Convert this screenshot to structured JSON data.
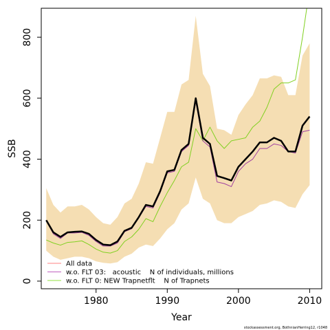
{
  "chart_data": {
    "type": "line",
    "xlabel": "Year",
    "ylabel": "SSB",
    "xlim": [
      1972.3,
      2011.7
    ],
    "ylim": [
      -25,
      895
    ],
    "x_ticks": [
      1980,
      1990,
      2000,
      2010
    ],
    "y_ticks": [
      0,
      200,
      400,
      600,
      800
    ],
    "x": [
      1973,
      1974,
      1975,
      1976,
      1977,
      1978,
      1979,
      1980,
      1981,
      1982,
      1983,
      1984,
      1985,
      1986,
      1987,
      1988,
      1989,
      1990,
      1991,
      1992,
      1993,
      1994,
      1995,
      1996,
      1997,
      1998,
      1999,
      2000,
      2001,
      2002,
      2003,
      2004,
      2005,
      2006,
      2007,
      2008,
      2009,
      2010
    ],
    "band": {
      "upper": [
        305,
        250,
        225,
        245,
        245,
        250,
        235,
        210,
        190,
        185,
        210,
        255,
        270,
        320,
        390,
        385,
        470,
        555,
        555,
        645,
        660,
        870,
        680,
        640,
        500,
        495,
        480,
        545,
        580,
        610,
        665,
        665,
        675,
        670,
        610,
        610,
        740,
        780
      ],
      "lower": [
        100,
        80,
        70,
        75,
        80,
        80,
        75,
        65,
        60,
        58,
        62,
        80,
        90,
        110,
        120,
        115,
        140,
        170,
        190,
        235,
        255,
        340,
        270,
        255,
        200,
        190,
        190,
        210,
        220,
        230,
        250,
        255,
        265,
        260,
        245,
        240,
        285,
        315
      ],
      "color": "#f5deb3"
    },
    "series": [
      {
        "name": "All data",
        "color": "#000000",
        "values": [
          200,
          160,
          145,
          160,
          162,
          163,
          155,
          135,
          120,
          118,
          130,
          165,
          175,
          210,
          250,
          245,
          295,
          360,
          365,
          430,
          450,
          600,
          470,
          450,
          345,
          338,
          330,
          375,
          400,
          425,
          455,
          455,
          470,
          460,
          425,
          425,
          510,
          540
        ]
      },
      {
        "name": "w.o. FLT 03:   acoustic    N of individuals, millions",
        "color": "#a040a0",
        "values": [
          198,
          155,
          140,
          158,
          158,
          160,
          150,
          130,
          115,
          115,
          125,
          162,
          172,
          208,
          245,
          240,
          290,
          355,
          360,
          425,
          445,
          590,
          460,
          440,
          325,
          320,
          310,
          360,
          385,
          400,
          435,
          435,
          450,
          445,
          425,
          420,
          490,
          495
        ]
      },
      {
        "name": "w.o. FLT 0: NEW Trapnetflt    N of Trapnets",
        "color": "#80d020",
        "values": [
          135,
          125,
          118,
          127,
          129,
          132,
          120,
          105,
          95,
          92,
          100,
          130,
          145,
          170,
          205,
          195,
          245,
          290,
          330,
          375,
          390,
          500,
          460,
          505,
          460,
          435,
          460,
          465,
          470,
          505,
          525,
          570,
          630,
          650,
          650,
          660,
          800,
          960
        ]
      }
    ],
    "legend_location": "bottom-left",
    "grid": false,
    "footnote": "stockassessment.org, BothnianHerring12, r1048"
  }
}
